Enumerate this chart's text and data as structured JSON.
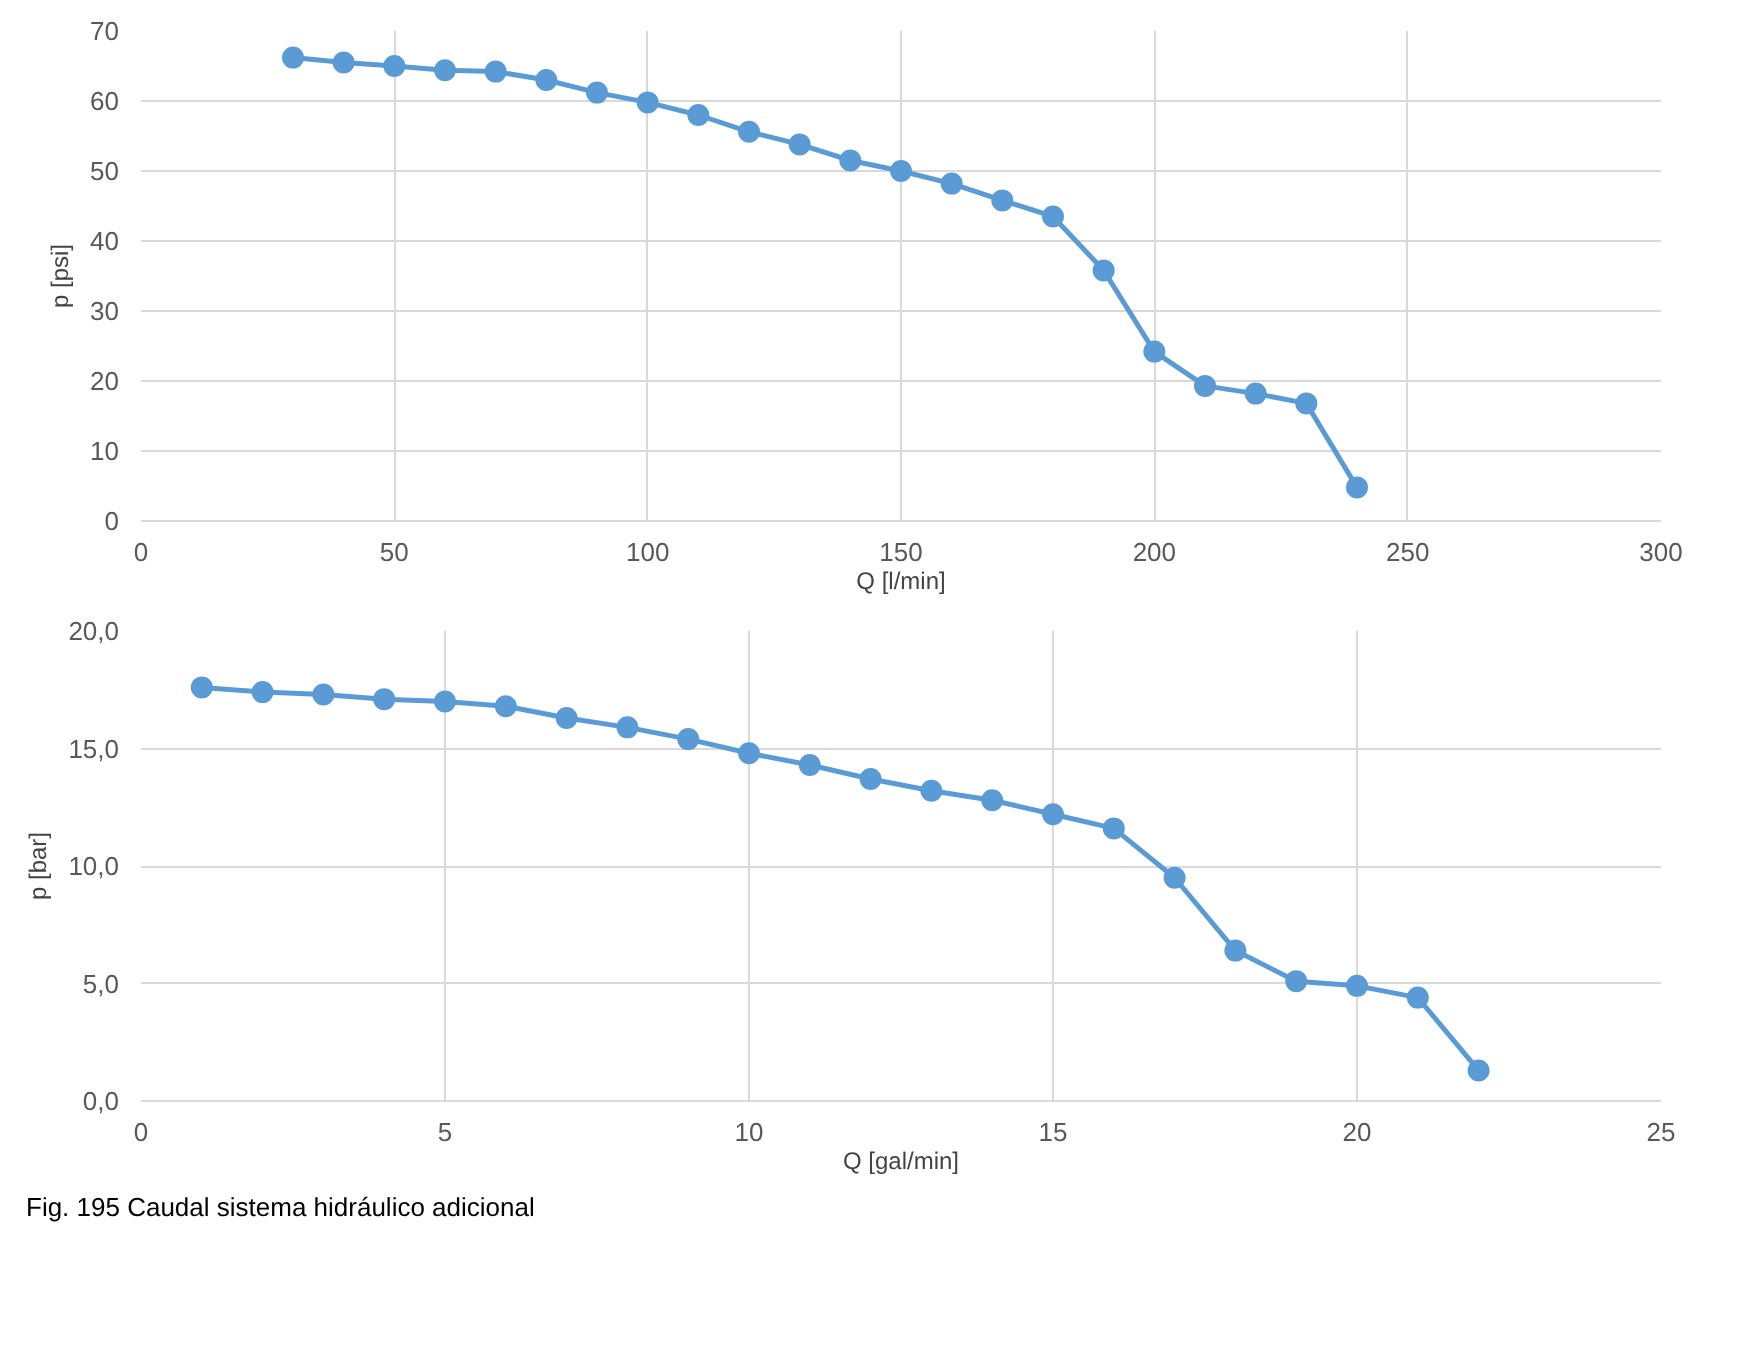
{
  "chart_data": [
    {
      "type": "line",
      "xlabel": "Q [l/min]",
      "ylabel": "p [psi]",
      "x": [
        30,
        40,
        50,
        60,
        70,
        80,
        90,
        100,
        110,
        120,
        130,
        140,
        150,
        160,
        170,
        180,
        190,
        200,
        210,
        220,
        230,
        240
      ],
      "series": [
        {
          "color": "#5b9bd5",
          "values": [
            66.2,
            65.5,
            65,
            64.4,
            64.2,
            63,
            61.2,
            59.8,
            58,
            55.6,
            53.8,
            51.5,
            50,
            48.2,
            45.8,
            43.5,
            35.8,
            24.2,
            19.3,
            18.2,
            16.8,
            4.8
          ]
        }
      ],
      "xlim": [
        0,
        300
      ],
      "xticks": [
        0,
        50,
        100,
        150,
        200,
        250,
        300
      ],
      "ylim": [
        0,
        70
      ],
      "yticks": [
        0,
        10,
        20,
        30,
        40,
        50,
        60,
        70
      ],
      "grid": true,
      "marker": "circle",
      "line_style": "solid"
    },
    {
      "type": "line",
      "xlabel": "Q [gal/min]",
      "ylabel": "p [bar]",
      "x": [
        1,
        2,
        3,
        4,
        5,
        6,
        7,
        8,
        9,
        10,
        11,
        12,
        13,
        14,
        15,
        16,
        17,
        18,
        19,
        20,
        21,
        22
      ],
      "series": [
        {
          "color": "#5b9bd5",
          "values": [
            17.6,
            17.4,
            17.3,
            17.1,
            17.0,
            16.8,
            16.3,
            15.9,
            15.4,
            14.8,
            14.3,
            13.7,
            13.2,
            12.8,
            12.2,
            11.6,
            9.5,
            6.4,
            5.1,
            4.9,
            4.4,
            1.3
          ]
        }
      ],
      "xlim": [
        0,
        25
      ],
      "xticks": [
        0,
        5,
        10,
        15,
        20,
        25
      ],
      "ylim": [
        0,
        20
      ],
      "yticks": [
        {
          "value": 0,
          "label": "0,0"
        },
        {
          "value": 5,
          "label": "5,0"
        },
        {
          "value": 10,
          "label": "10,0"
        },
        {
          "value": 15,
          "label": "15,0"
        },
        {
          "value": 20,
          "label": "20,0"
        }
      ],
      "grid": true,
      "marker": "circle",
      "line_style": "solid",
      "annotations": [
        "Fig. 195 Caudal sistema hidráulico adicional"
      ]
    }
  ]
}
